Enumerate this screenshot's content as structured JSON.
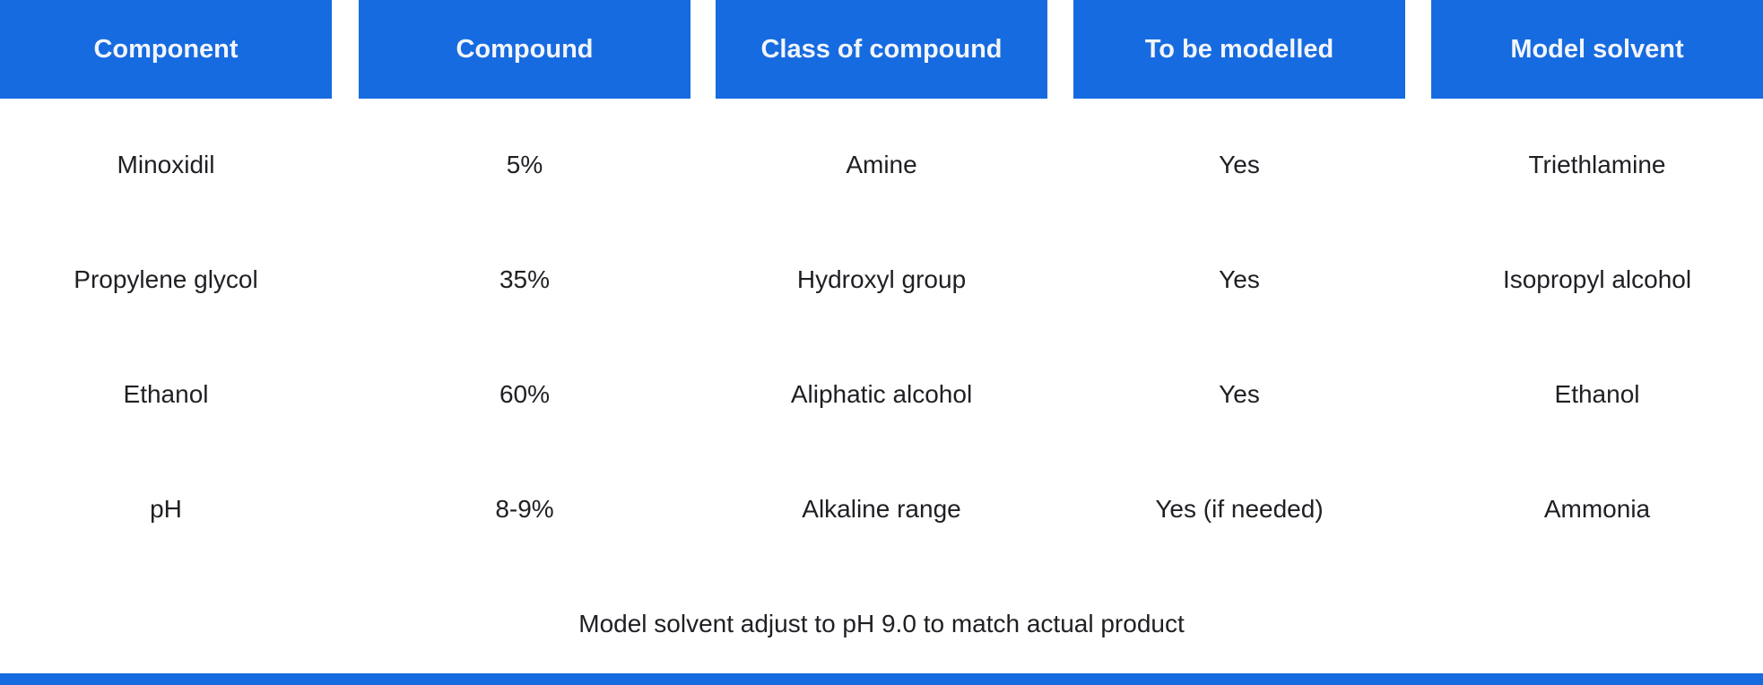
{
  "headers": [
    "Component",
    "Compound",
    "Class of compound",
    "To be modelled",
    "Model solvent"
  ],
  "rows": [
    [
      "Minoxidil",
      "5%",
      "Amine",
      "Yes",
      "Triethlamine"
    ],
    [
      "Propylene glycol",
      "35%",
      "Hydroxyl group",
      "Yes",
      "Isopropyl alcohol"
    ],
    [
      "Ethanol",
      "60%",
      "Aliphatic alcohol",
      "Yes",
      "Ethanol"
    ],
    [
      "pH",
      "8-9%",
      "Alkaline range",
      "Yes (if needed)",
      "Ammonia"
    ]
  ],
  "note": "Model solvent adjust to pH 9.0 to match actual product",
  "colors": {
    "accent": "#166be0",
    "text": "#1f1f24"
  }
}
